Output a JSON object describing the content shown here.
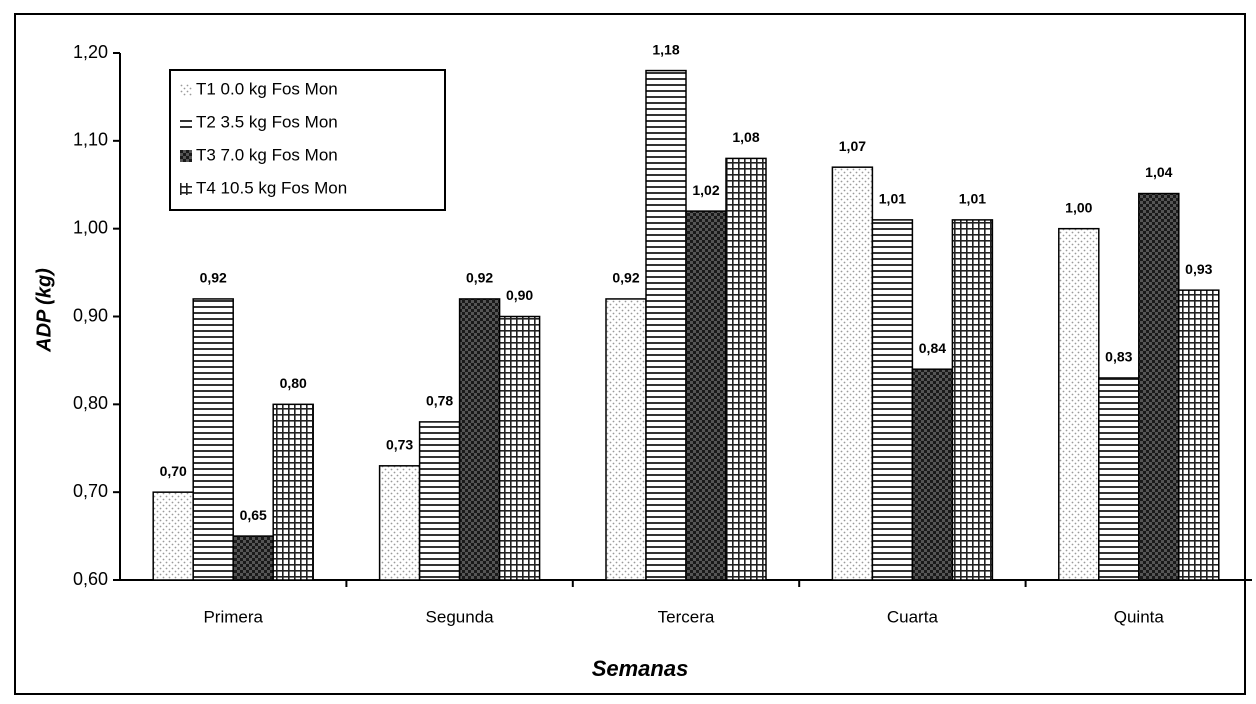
{
  "chart_data": {
    "type": "bar",
    "ylabel": "ADP (kg)",
    "xlabel": "Semanas",
    "categories": [
      "Primera",
      "Segunda",
      "Tercera",
      "Cuarta",
      "Quinta"
    ],
    "series": [
      {
        "name": "T1 0.0 kg Fos Mon",
        "color": "#9a9a9a",
        "values": [
          0.7,
          0.73,
          0.92,
          1.07,
          1.0
        ],
        "value_labels": [
          "0,70",
          "0,73",
          "0,92",
          "1,07",
          "1,00"
        ]
      },
      {
        "name": "T2 3.5 kg Fos Mon",
        "color": "#333333",
        "values": [
          0.92,
          0.78,
          1.18,
          1.01,
          0.83
        ],
        "value_labels": [
          "0,92",
          "0,78",
          "1,18",
          "1,01",
          "0,83"
        ]
      },
      {
        "name": "T3 7.0 kg Fos Mon",
        "color": "#1a1a1a",
        "values": [
          0.65,
          0.92,
          1.02,
          0.84,
          1.04
        ],
        "value_labels": [
          "0,65",
          "0,92",
          "1,02",
          "0,84",
          "1,04"
        ]
      },
      {
        "name": "T4 10.5 kg Fos Mon",
        "color": "#222222",
        "values": [
          0.8,
          0.9,
          1.08,
          1.01,
          0.93
        ],
        "value_labels": [
          "0,80",
          "0,90",
          "1,08",
          "1,01",
          "0,93"
        ]
      }
    ],
    "ylim": [
      0.6,
      1.2
    ],
    "yticks": [
      {
        "value": 0.6,
        "label": "0,60"
      },
      {
        "value": 0.7,
        "label": "0,70"
      },
      {
        "value": 0.8,
        "label": "0,80"
      },
      {
        "value": 0.9,
        "label": "0,90"
      },
      {
        "value": 1.0,
        "label": "1,00"
      },
      {
        "value": 1.1,
        "label": "1,10"
      },
      {
        "value": 1.2,
        "label": "1,20"
      }
    ],
    "legend": "upper left"
  }
}
